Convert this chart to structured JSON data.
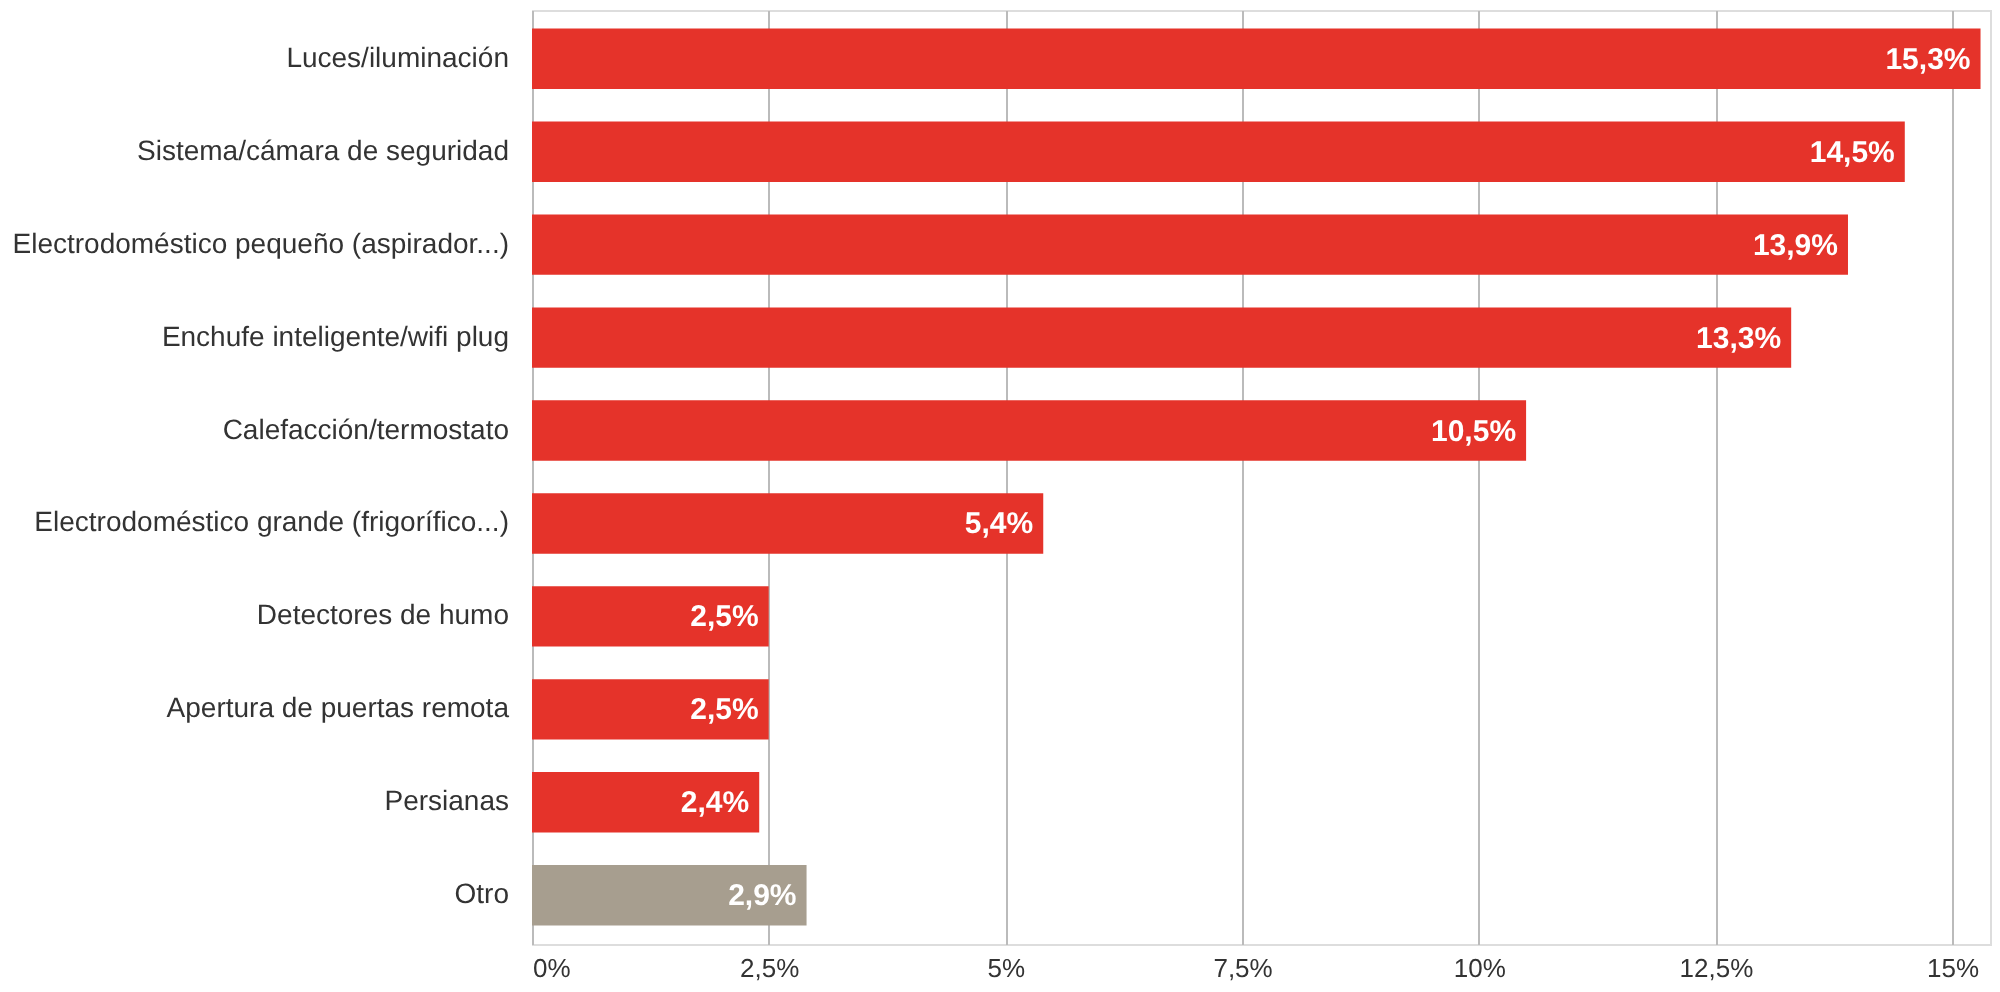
{
  "chart_data": {
    "type": "bar",
    "orientation": "horizontal",
    "categories": [
      "Luces/iluminación",
      "Sistema/cámara de seguridad",
      "Electrodoméstico pequeño (aspirador...)",
      "Enchufe inteligente/wifi plug",
      "Calefacción/termostato",
      "Electrodoméstico grande (frigorífico...)",
      "Detectores de humo",
      "Apertura de puertas remota",
      "Persianas",
      "Otro"
    ],
    "values": [
      15.3,
      14.5,
      13.9,
      13.3,
      10.5,
      5.4,
      2.5,
      2.5,
      2.4,
      2.9
    ],
    "value_labels": [
      "15,3%",
      "14,5%",
      "13,9%",
      "13,3%",
      "10,5%",
      "5,4%",
      "2,5%",
      "2,5%",
      "2,4%",
      "2,9%"
    ],
    "colors": [
      "#e5332a",
      "#e5332a",
      "#e5332a",
      "#e5332a",
      "#e5332a",
      "#e5332a",
      "#e5332a",
      "#e5332a",
      "#e5332a",
      "#a79e8f"
    ],
    "xlim": [
      0,
      15.4
    ],
    "xticks": [
      {
        "value": 0,
        "label": "0%"
      },
      {
        "value": 2.5,
        "label": "2,5%"
      },
      {
        "value": 5,
        "label": "5%"
      },
      {
        "value": 7.5,
        "label": "7,5%"
      },
      {
        "value": 10,
        "label": "10%"
      },
      {
        "value": 12.5,
        "label": "12,5%"
      },
      {
        "value": 15,
        "label": "15%"
      }
    ],
    "grid": "x",
    "legend": false
  }
}
